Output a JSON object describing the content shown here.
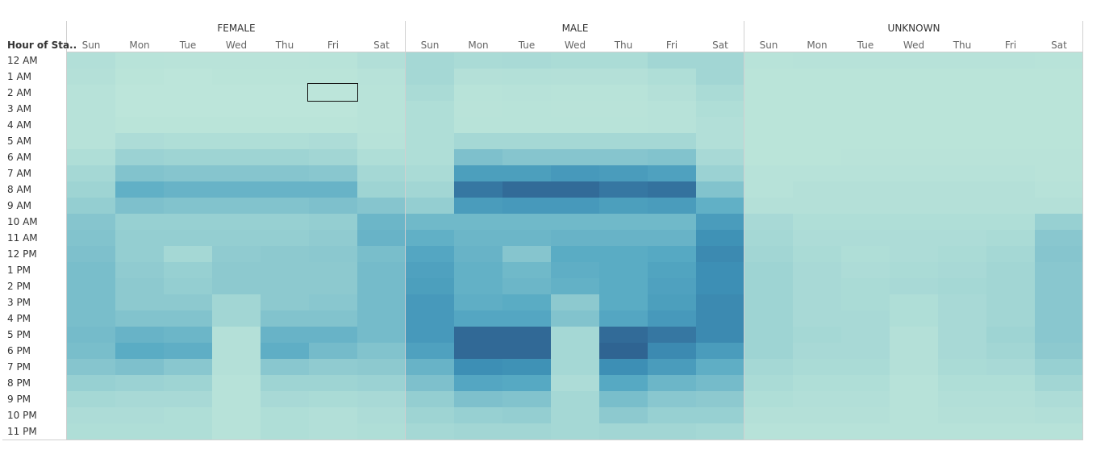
{
  "chart_data": {
    "type": "heatmap",
    "row_header": "Hour of Sta..",
    "groups": [
      "FEMALE",
      "MALE",
      "UNKNOWN"
    ],
    "days": [
      "Sun",
      "Mon",
      "Tue",
      "Wed",
      "Thu",
      "Fri",
      "Sat"
    ],
    "hours": [
      "12 AM",
      "1 AM",
      "2 AM",
      "3 AM",
      "4 AM",
      "5 AM",
      "6 AM",
      "7 AM",
      "8 AM",
      "9 AM",
      "10 AM",
      "11 AM",
      "12 PM",
      "1 PM",
      "2 PM",
      "3 PM",
      "4 PM",
      "5 PM",
      "6 PM",
      "7 PM",
      "8 PM",
      "9 PM",
      "10 PM",
      "11 PM"
    ],
    "intensity_scale": "relative 0-100",
    "color_scale": [
      "#bee6da",
      "#a5d8d5",
      "#82c3cd",
      "#56a9c3",
      "#3d8fb5",
      "#2e5f8e"
    ],
    "values": [
      [
        [
          10,
          5,
          4,
          4,
          4,
          5,
          10
        ],
        [
          20,
          16,
          17,
          15,
          15,
          22,
          22
        ],
        [
          5,
          6,
          6,
          6,
          6,
          6,
          5
        ]
      ],
      [
        [
          8,
          3,
          2,
          3,
          3,
          3,
          6
        ],
        [
          20,
          8,
          9,
          8,
          8,
          12,
          22
        ],
        [
          3,
          3,
          3,
          3,
          3,
          3,
          3
        ]
      ],
      [
        [
          6,
          2,
          2,
          2,
          2,
          2,
          5
        ],
        [
          16,
          5,
          6,
          5,
          5,
          8,
          16
        ],
        [
          3,
          3,
          3,
          3,
          3,
          3,
          3
        ]
      ],
      [
        [
          6,
          2,
          2,
          2,
          2,
          2,
          5
        ],
        [
          12,
          4,
          5,
          4,
          4,
          6,
          12
        ],
        [
          3,
          3,
          3,
          3,
          3,
          3,
          3
        ]
      ],
      [
        [
          6,
          3,
          3,
          3,
          3,
          3,
          5
        ],
        [
          12,
          5,
          5,
          5,
          5,
          6,
          10
        ],
        [
          3,
          3,
          3,
          3,
          3,
          3,
          3
        ]
      ],
      [
        [
          6,
          14,
          12,
          12,
          12,
          14,
          6
        ],
        [
          12,
          20,
          20,
          20,
          20,
          20,
          10
        ],
        [
          3,
          3,
          3,
          3,
          3,
          3,
          3
        ]
      ],
      [
        [
          12,
          26,
          24,
          24,
          24,
          22,
          12
        ],
        [
          12,
          42,
          38,
          38,
          38,
          40,
          18
        ],
        [
          3,
          3,
          4,
          4,
          4,
          4,
          4
        ]
      ],
      [
        [
          20,
          40,
          38,
          38,
          38,
          36,
          20
        ],
        [
          16,
          68,
          68,
          72,
          70,
          66,
          26
        ],
        [
          6,
          6,
          6,
          6,
          6,
          6,
          4
        ]
      ],
      [
        [
          24,
          55,
          52,
          52,
          52,
          52,
          24
        ],
        [
          22,
          90,
          95,
          95,
          90,
          92,
          40
        ],
        [
          6,
          8,
          8,
          8,
          8,
          8,
          6
        ]
      ],
      [
        [
          30,
          42,
          40,
          40,
          40,
          42,
          38
        ],
        [
          30,
          70,
          72,
          72,
          68,
          70,
          55
        ],
        [
          8,
          8,
          8,
          8,
          8,
          8,
          8
        ]
      ],
      [
        [
          38,
          28,
          28,
          28,
          28,
          30,
          50
        ],
        [
          48,
          48,
          48,
          48,
          48,
          48,
          70
        ],
        [
          18,
          12,
          12,
          12,
          12,
          12,
          28
        ]
      ],
      [
        [
          40,
          30,
          30,
          30,
          30,
          32,
          52
        ],
        [
          55,
          50,
          50,
          52,
          52,
          52,
          78
        ],
        [
          20,
          14,
          14,
          14,
          14,
          16,
          36
        ]
      ],
      [
        [
          42,
          30,
          20,
          32,
          34,
          35,
          44
        ],
        [
          62,
          52,
          38,
          58,
          58,
          60,
          82
        ],
        [
          22,
          16,
          12,
          14,
          16,
          20,
          38
        ]
      ],
      [
        [
          44,
          32,
          28,
          34,
          34,
          34,
          46
        ],
        [
          66,
          54,
          48,
          56,
          58,
          64,
          80
        ],
        [
          24,
          18,
          14,
          16,
          18,
          22,
          36
        ]
      ],
      [
        [
          44,
          34,
          30,
          34,
          34,
          34,
          46
        ],
        [
          68,
          54,
          50,
          54,
          58,
          66,
          80
        ],
        [
          24,
          18,
          16,
          18,
          20,
          22,
          36
        ]
      ],
      [
        [
          44,
          34,
          34,
          22,
          34,
          36,
          46
        ],
        [
          72,
          56,
          58,
          34,
          58,
          68,
          82
        ],
        [
          24,
          18,
          16,
          12,
          18,
          22,
          36
        ]
      ],
      [
        [
          44,
          40,
          40,
          22,
          40,
          40,
          46
        ],
        [
          72,
          62,
          62,
          40,
          62,
          72,
          82
        ],
        [
          24,
          18,
          18,
          12,
          18,
          22,
          36
        ]
      ],
      [
        [
          46,
          52,
          50,
          8,
          52,
          52,
          46
        ],
        [
          72,
          96,
          96,
          20,
          95,
          90,
          82
        ],
        [
          24,
          20,
          18,
          8,
          18,
          24,
          36
        ]
      ],
      [
        [
          44,
          58,
          56,
          8,
          56,
          46,
          40
        ],
        [
          66,
          96,
          96,
          20,
          98,
          82,
          70
        ],
        [
          24,
          18,
          18,
          8,
          18,
          22,
          34
        ]
      ],
      [
        [
          38,
          42,
          36,
          8,
          36,
          32,
          34
        ],
        [
          52,
          80,
          78,
          20,
          80,
          70,
          56
        ],
        [
          20,
          16,
          16,
          8,
          16,
          18,
          28
        ]
      ],
      [
        [
          28,
          26,
          24,
          6,
          24,
          24,
          26
        ],
        [
          42,
          62,
          60,
          14,
          60,
          50,
          46
        ],
        [
          16,
          12,
          12,
          6,
          12,
          12,
          22
        ]
      ],
      [
        [
          20,
          18,
          18,
          6,
          18,
          16,
          18
        ],
        [
          30,
          42,
          40,
          20,
          44,
          36,
          34
        ],
        [
          12,
          10,
          10,
          6,
          10,
          10,
          14
        ]
      ],
      [
        [
          14,
          14,
          12,
          6,
          12,
          10,
          14
        ],
        [
          24,
          28,
          30,
          20,
          34,
          28,
          28
        ],
        [
          8,
          8,
          8,
          6,
          8,
          8,
          10
        ]
      ],
      [
        [
          12,
          12,
          12,
          6,
          12,
          10,
          12
        ],
        [
          20,
          22,
          22,
          20,
          22,
          22,
          20
        ],
        [
          6,
          6,
          6,
          6,
          6,
          6,
          6
        ]
      ]
    ],
    "selected_cell": {
      "group": "FEMALE",
      "day": "Fri",
      "hour": "2 AM"
    }
  }
}
